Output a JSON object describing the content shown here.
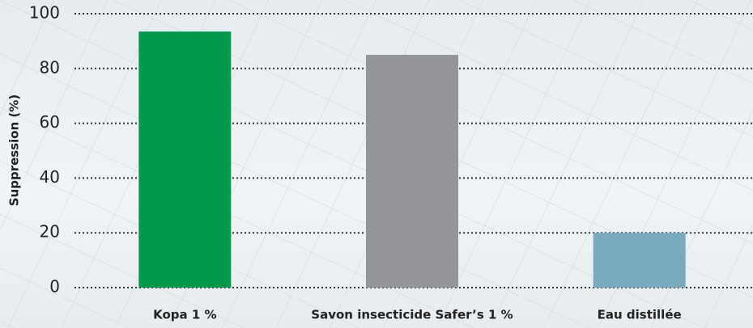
{
  "chart_data": {
    "type": "bar",
    "y_label": "Suppression (%)",
    "categories": [
      "Kopa 1 %",
      "Savon insecticide Safer’s 1 %",
      "Eau distillée"
    ],
    "values": [
      93.5,
      85,
      20
    ],
    "colors": [
      "#009a4a",
      "#949598",
      "#7aaac0"
    ],
    "ylim": [
      0,
      100
    ],
    "yticks": [
      0,
      20,
      40,
      60,
      80,
      100
    ],
    "grid": true
  }
}
